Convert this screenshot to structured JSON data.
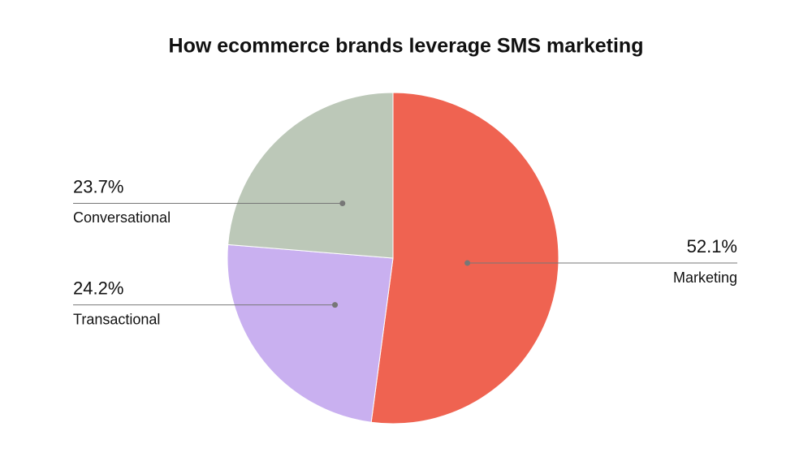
{
  "chart_data": {
    "type": "pie",
    "title": "How ecommerce brands leverage SMS marketing",
    "categories": [
      "Marketing",
      "Transactional",
      "Conversational"
    ],
    "values": [
      52.1,
      24.2,
      23.7
    ],
    "value_labels": [
      "52.1%",
      "24.2%",
      "23.7%"
    ],
    "colors": [
      "#ef6351",
      "#c9b0f0",
      "#bcc8b8"
    ]
  }
}
